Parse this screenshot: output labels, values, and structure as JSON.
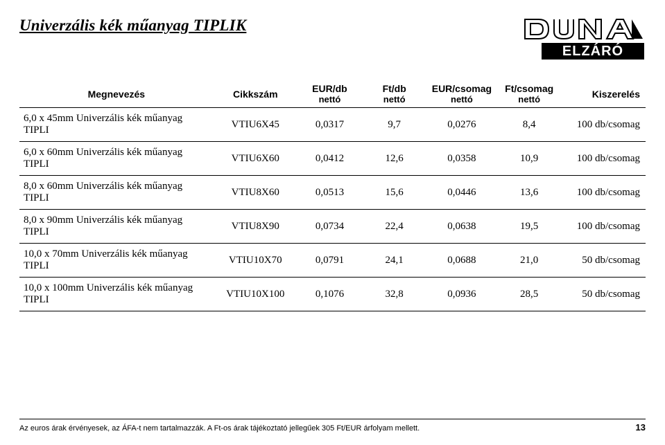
{
  "title": "Univerzális kék műanyag TIPLIK",
  "logo": {
    "top_text": "DUNA",
    "bottom_text": "ELZÁRÓ",
    "outline_color": "#000000",
    "fill_color": "#ffffff"
  },
  "table": {
    "headers": {
      "megnevezes": "Megnevezés",
      "cikkszam": "Cikkszám",
      "eur_db_top": "EUR/db",
      "eur_db_sub": "nettó",
      "ft_db_top": "Ft/db",
      "ft_db_sub": "nettó",
      "eur_cs_top": "EUR/csomag",
      "eur_cs_sub": "nettó",
      "ft_cs_top": "Ft/csomag",
      "ft_cs_sub": "nettó",
      "kiszereles": "Kiszerelés"
    },
    "rows": [
      {
        "name": "6,0 x 45mm Univerzális kék műanyag TIPLI",
        "cikk": "VTIU6X45",
        "eurdb": "0,0317",
        "ftdb": "9,7",
        "eurcs": "0,0276",
        "ftcs": "8,4",
        "kisz": "100 db/csomag"
      },
      {
        "name": "6,0 x 60mm Univerzális kék műanyag TIPLI",
        "cikk": "VTIU6X60",
        "eurdb": "0,0412",
        "ftdb": "12,6",
        "eurcs": "0,0358",
        "ftcs": "10,9",
        "kisz": "100 db/csomag"
      },
      {
        "name": "8,0 x 60mm Univerzális kék műanyag TIPLI",
        "cikk": "VTIU8X60",
        "eurdb": "0,0513",
        "ftdb": "15,6",
        "eurcs": "0,0446",
        "ftcs": "13,6",
        "kisz": "100 db/csomag"
      },
      {
        "name": "8,0 x 90mm Univerzális kék műanyag TIPLI",
        "cikk": "VTIU8X90",
        "eurdb": "0,0734",
        "ftdb": "22,4",
        "eurcs": "0,0638",
        "ftcs": "19,5",
        "kisz": "100 db/csomag"
      },
      {
        "name": "10,0 x 70mm Univerzális kék műanyag TIPLI",
        "cikk": "VTIU10X70",
        "eurdb": "0,0791",
        "ftdb": "24,1",
        "eurcs": "0,0688",
        "ftcs": "21,0",
        "kisz": "50 db/csomag"
      },
      {
        "name": "10,0 x 100mm Univerzális kék műanyag TIPLI",
        "cikk": "VTIU10X100",
        "eurdb": "0,1076",
        "ftdb": "32,8",
        "eurcs": "0,0936",
        "ftcs": "28,5",
        "kisz": "50 db/csomag"
      }
    ]
  },
  "footer": {
    "note": "Az euros árak érvényesek, az ÁFA-t nem tartalmazzák. A Ft-os árak tájékoztató jellegűek 305 Ft/EUR árfolyam mellett.",
    "page": "13"
  }
}
